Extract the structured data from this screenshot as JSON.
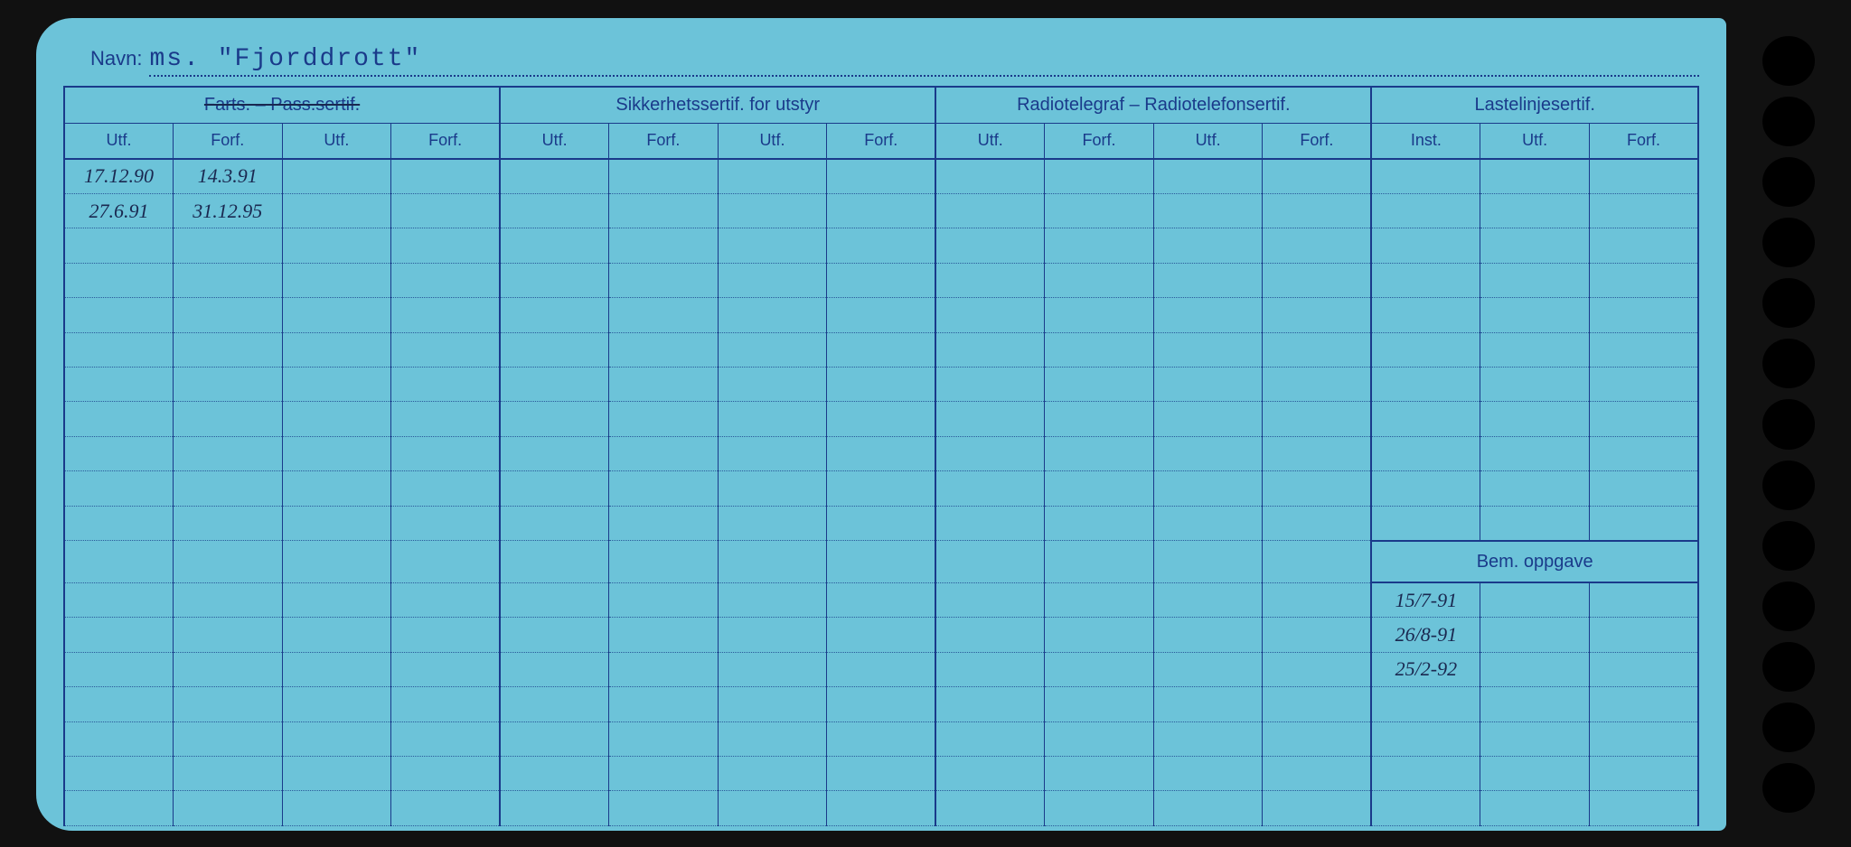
{
  "navn_label": "Navn:",
  "navn_value": "ms. \"Fjorddrott\"",
  "groups": [
    {
      "title": "Farts. – Pass.sertif.",
      "strike": true
    },
    {
      "title": "Sikkerhetssertif. for utstyr",
      "strike": false
    },
    {
      "title": "Radiotelegraf – Radiotelefonsertif.",
      "strike": false
    },
    {
      "title": "Lastelinjesertif.",
      "strike": false
    }
  ],
  "sub_labels": {
    "utf": "Utf.",
    "forf": "Forf.",
    "inst": "Inst."
  },
  "bem_label": "Bem. oppgave",
  "entries": {
    "r0c0": "17.12.90",
    "r0c1": "14.3.91",
    "r1c0": "27.6.91",
    "r1c1": "31.12.95"
  },
  "bem_entries": [
    "15/7-91",
    "26/8-91",
    "25/2-92"
  ],
  "colors": {
    "card_bg": "#6cc3d9",
    "ink": "#1a3a8a",
    "pen": "#1a2850"
  },
  "num_data_rows": 19,
  "num_punch_holes": 13
}
